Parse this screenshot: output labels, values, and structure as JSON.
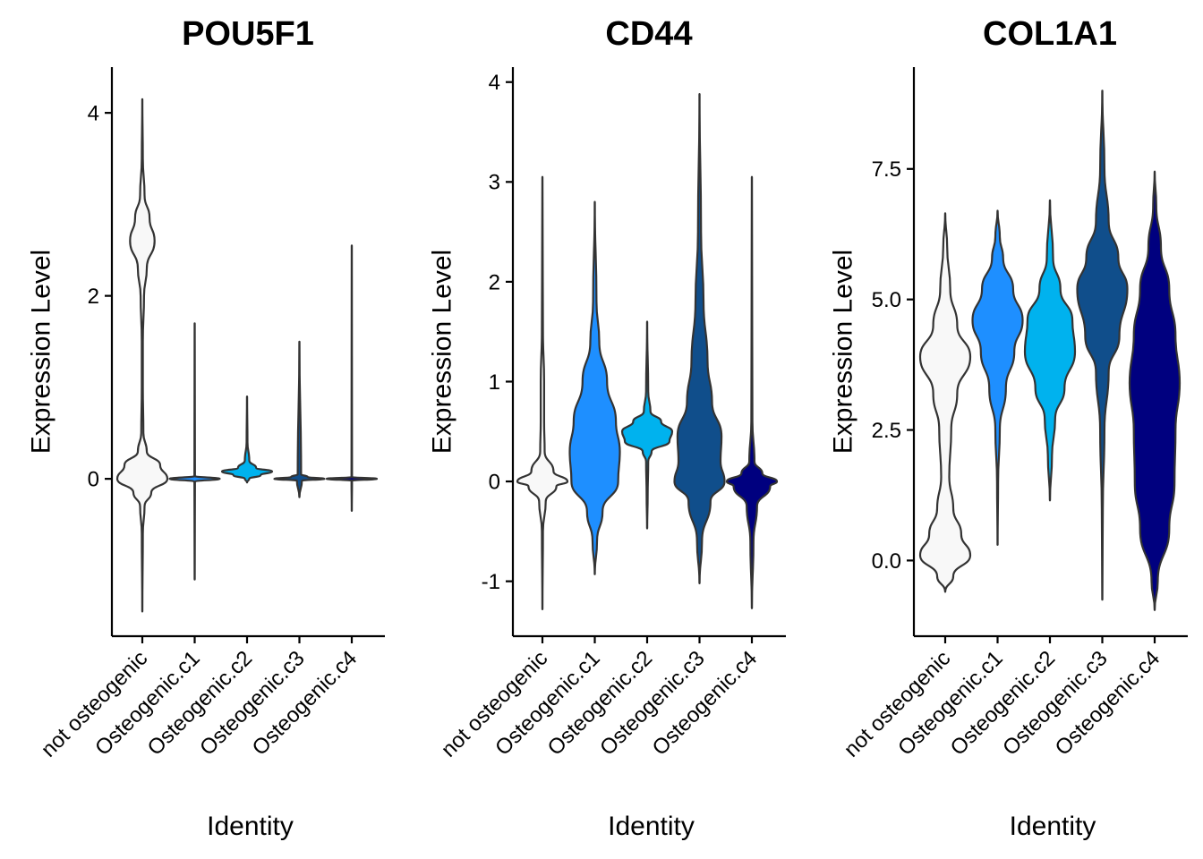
{
  "figure": {
    "colors": {
      "not osteogenic": "#f8f8f8",
      "Osteogenic.c1": "#1e8fff",
      "Osteogenic.c2": "#00b2ee",
      "Osteogenic.c3": "#104e8b",
      "Osteogenic.c4": "#00007f"
    }
  },
  "chart_data": [
    {
      "type": "violin",
      "title": "POU5F1",
      "xlabel": "Identity",
      "ylabel": "Expression Level",
      "categories": [
        "not osteogenic",
        "Osteogenic.c1",
        "Osteogenic.c2",
        "Osteogenic.c3",
        "Osteogenic.c4"
      ],
      "ylim": [
        -1.72,
        4.5
      ],
      "yticks": [
        0,
        2,
        4
      ],
      "ytick_labels": [
        "0",
        "2",
        "4"
      ],
      "violins": [
        {
          "category": "not osteogenic",
          "min": -1.45,
          "max": 4.15,
          "profile": [
            [
              -1.45,
              0.0
            ],
            [
              -0.6,
              0.01
            ],
            [
              -0.3,
              0.04
            ],
            [
              -0.15,
              0.16
            ],
            [
              0.0,
              0.45
            ],
            [
              0.15,
              0.32
            ],
            [
              0.3,
              0.08
            ],
            [
              0.5,
              0.02
            ],
            [
              1.0,
              0.01
            ],
            [
              1.5,
              0.01
            ],
            [
              2.0,
              0.03
            ],
            [
              2.3,
              0.08
            ],
            [
              2.6,
              0.22
            ],
            [
              2.85,
              0.13
            ],
            [
              3.1,
              0.04
            ],
            [
              3.5,
              0.01
            ],
            [
              4.15,
              0.0
            ]
          ]
        },
        {
          "category": "Osteogenic.c1",
          "min": -1.1,
          "max": 1.7,
          "profile": [
            [
              -1.1,
              0.0
            ],
            [
              -0.03,
              0.01
            ],
            [
              0.0,
              0.9
            ],
            [
              0.03,
              0.01
            ],
            [
              1.7,
              0.0
            ]
          ]
        },
        {
          "category": "Osteogenic.c2",
          "min": -0.04,
          "max": 0.9,
          "profile": [
            [
              -0.04,
              0.0
            ],
            [
              0.0,
              0.05
            ],
            [
              0.04,
              0.3
            ],
            [
              0.08,
              0.55
            ],
            [
              0.12,
              0.2
            ],
            [
              0.2,
              0.05
            ],
            [
              0.4,
              0.01
            ],
            [
              0.9,
              0.0
            ]
          ]
        },
        {
          "category": "Osteogenic.c3",
          "min": -0.2,
          "max": 1.5,
          "profile": [
            [
              -0.2,
              0.0
            ],
            [
              -0.02,
              0.03
            ],
            [
              0.0,
              0.3
            ],
            [
              0.02,
              0.1
            ],
            [
              0.05,
              0.02
            ],
            [
              1.5,
              0.0
            ]
          ]
        },
        {
          "category": "Osteogenic.c4",
          "min": -0.35,
          "max": 2.55,
          "profile": [
            [
              -0.35,
              0.0
            ],
            [
              -0.02,
              0.01
            ],
            [
              0.0,
              0.95
            ],
            [
              0.02,
              0.01
            ],
            [
              2.55,
              0.0
            ]
          ]
        }
      ]
    },
    {
      "type": "violin",
      "title": "CD44",
      "xlabel": "Identity",
      "ylabel": "Expression Level",
      "categories": [
        "not osteogenic",
        "Osteogenic.c1",
        "Osteogenic.c2",
        "Osteogenic.c3",
        "Osteogenic.c4"
      ],
      "ylim": [
        -1.55,
        4.15
      ],
      "yticks": [
        -1,
        0,
        1,
        2,
        3,
        4
      ],
      "ytick_labels": [
        "-1",
        "0",
        "1",
        "2",
        "3",
        "4"
      ],
      "violins": [
        {
          "category": "not osteogenic",
          "min": -1.28,
          "max": 3.05,
          "profile": [
            [
              -1.28,
              0.0
            ],
            [
              -0.5,
              0.01
            ],
            [
              -0.2,
              0.06
            ],
            [
              -0.05,
              0.25
            ],
            [
              0.0,
              0.45
            ],
            [
              0.1,
              0.2
            ],
            [
              0.3,
              0.04
            ],
            [
              0.6,
              0.03
            ],
            [
              1.0,
              0.03
            ],
            [
              1.5,
              0.01
            ],
            [
              3.05,
              0.0
            ]
          ]
        },
        {
          "category": "Osteogenic.c1",
          "min": -0.93,
          "max": 2.8,
          "profile": [
            [
              -0.93,
              0.0
            ],
            [
              -0.6,
              0.04
            ],
            [
              -0.3,
              0.14
            ],
            [
              0.0,
              0.42
            ],
            [
              0.3,
              0.45
            ],
            [
              0.6,
              0.38
            ],
            [
              1.0,
              0.22
            ],
            [
              1.4,
              0.08
            ],
            [
              1.8,
              0.03
            ],
            [
              2.8,
              0.0
            ]
          ]
        },
        {
          "category": "Osteogenic.c2",
          "min": -0.47,
          "max": 1.6,
          "profile": [
            [
              -0.47,
              0.0
            ],
            [
              -0.15,
              0.01
            ],
            [
              0.2,
              0.02
            ],
            [
              0.3,
              0.08
            ],
            [
              0.4,
              0.4
            ],
            [
              0.5,
              0.45
            ],
            [
              0.6,
              0.25
            ],
            [
              0.7,
              0.06
            ],
            [
              0.9,
              0.02
            ],
            [
              1.6,
              0.0
            ]
          ]
        },
        {
          "category": "Osteogenic.c3",
          "min": -1.02,
          "max": 3.88,
          "profile": [
            [
              -1.02,
              0.0
            ],
            [
              -0.6,
              0.05
            ],
            [
              -0.2,
              0.22
            ],
            [
              0.0,
              0.5
            ],
            [
              0.2,
              0.42
            ],
            [
              0.45,
              0.44
            ],
            [
              0.8,
              0.25
            ],
            [
              1.2,
              0.16
            ],
            [
              1.8,
              0.08
            ],
            [
              2.5,
              0.03
            ],
            [
              3.88,
              0.0
            ]
          ]
        },
        {
          "category": "Osteogenic.c4",
          "min": -1.27,
          "max": 3.05,
          "profile": [
            [
              -1.27,
              0.0
            ],
            [
              -0.6,
              0.03
            ],
            [
              -0.25,
              0.1
            ],
            [
              -0.05,
              0.35
            ],
            [
              0.0,
              0.48
            ],
            [
              0.08,
              0.2
            ],
            [
              0.2,
              0.05
            ],
            [
              0.6,
              0.01
            ],
            [
              3.05,
              0.0
            ]
          ]
        }
      ]
    },
    {
      "type": "violin",
      "title": "COL1A1",
      "xlabel": "Identity",
      "ylabel": "Expression Level",
      "categories": [
        "not osteogenic",
        "Osteogenic.c1",
        "Osteogenic.c2",
        "Osteogenic.c3",
        "Osteogenic.c4"
      ],
      "ylim": [
        -1.45,
        9.45
      ],
      "yticks": [
        0.0,
        2.5,
        5.0,
        7.5
      ],
      "ytick_labels": [
        "0.0",
        "2.5",
        "5.0",
        "7.5"
      ],
      "violins": [
        {
          "category": "not osteogenic",
          "min": -0.6,
          "max": 6.65,
          "profile": [
            [
              -0.6,
              0.0
            ],
            [
              -0.3,
              0.08
            ],
            [
              0.1,
              0.25
            ],
            [
              0.5,
              0.16
            ],
            [
              1.0,
              0.08
            ],
            [
              1.6,
              0.04
            ],
            [
              2.5,
              0.06
            ],
            [
              3.2,
              0.12
            ],
            [
              3.9,
              0.25
            ],
            [
              4.5,
              0.12
            ],
            [
              5.2,
              0.05
            ],
            [
              6.0,
              0.02
            ],
            [
              6.65,
              0.0
            ]
          ]
        },
        {
          "category": "Osteogenic.c1",
          "min": 0.3,
          "max": 6.7,
          "profile": [
            [
              0.3,
              0.0
            ],
            [
              1.5,
              0.01
            ],
            [
              2.5,
              0.04
            ],
            [
              3.3,
              0.15
            ],
            [
              4.0,
              0.3
            ],
            [
              4.6,
              0.45
            ],
            [
              5.2,
              0.28
            ],
            [
              5.8,
              0.1
            ],
            [
              6.2,
              0.04
            ],
            [
              6.7,
              0.0
            ]
          ]
        },
        {
          "category": "Osteogenic.c2",
          "min": 1.15,
          "max": 6.9,
          "profile": [
            [
              1.15,
              0.0
            ],
            [
              2.0,
              0.04
            ],
            [
              2.7,
              0.1
            ],
            [
              3.3,
              0.28
            ],
            [
              4.0,
              0.48
            ],
            [
              4.6,
              0.43
            ],
            [
              5.2,
              0.2
            ],
            [
              5.8,
              0.06
            ],
            [
              6.9,
              0.0
            ]
          ]
        },
        {
          "category": "Osteogenic.c3",
          "min": -0.75,
          "max": 9.0,
          "profile": [
            [
              -0.75,
              0.0
            ],
            [
              1.0,
              0.01
            ],
            [
              2.5,
              0.04
            ],
            [
              3.6,
              0.12
            ],
            [
              4.3,
              0.32
            ],
            [
              5.2,
              0.47
            ],
            [
              5.8,
              0.3
            ],
            [
              6.5,
              0.12
            ],
            [
              7.5,
              0.04
            ],
            [
              9.0,
              0.0
            ]
          ]
        },
        {
          "category": "Osteogenic.c4",
          "min": -0.95,
          "max": 7.45,
          "profile": [
            [
              -0.95,
              0.0
            ],
            [
              -0.4,
              0.06
            ],
            [
              0.6,
              0.28
            ],
            [
              1.5,
              0.38
            ],
            [
              2.5,
              0.4
            ],
            [
              3.4,
              0.48
            ],
            [
              4.3,
              0.4
            ],
            [
              5.2,
              0.28
            ],
            [
              6.0,
              0.12
            ],
            [
              6.8,
              0.03
            ],
            [
              7.45,
              0.0
            ]
          ]
        }
      ]
    }
  ]
}
